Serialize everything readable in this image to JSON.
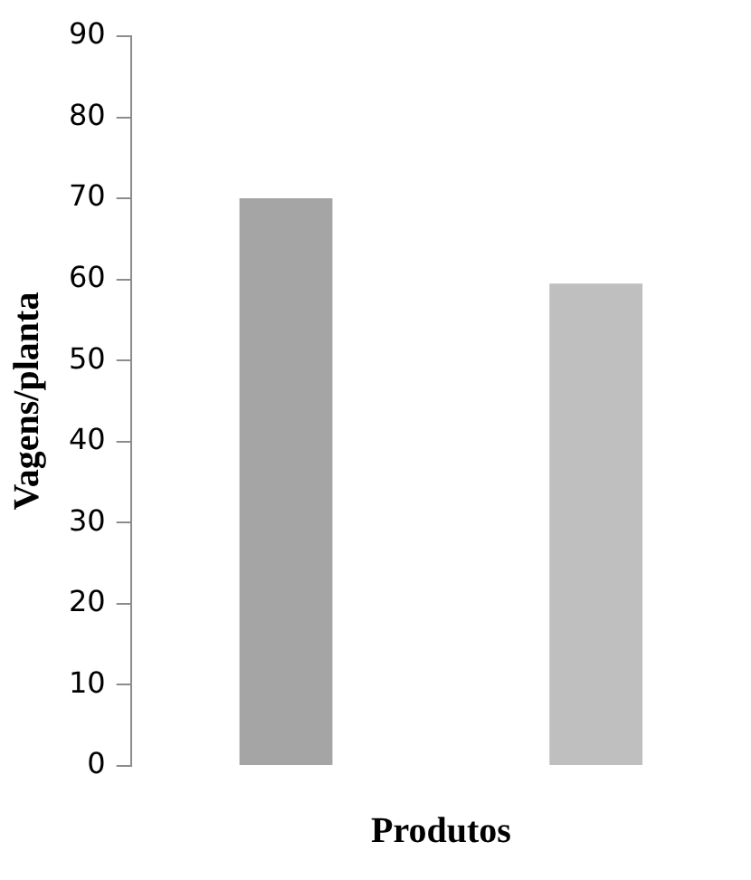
{
  "chart_data": {
    "type": "bar",
    "xlabel": "Produtos",
    "ylabel": "Vagens/planta",
    "categories": [
      null,
      null
    ],
    "values": [
      70,
      59.5
    ],
    "colors": [
      "#a5a5a5",
      "#bfbfbf"
    ],
    "ylim": [
      0,
      90
    ],
    "yticks": [
      0,
      10,
      20,
      30,
      40,
      50,
      60,
      70,
      80,
      90
    ],
    "grid": false,
    "legend": false
  }
}
